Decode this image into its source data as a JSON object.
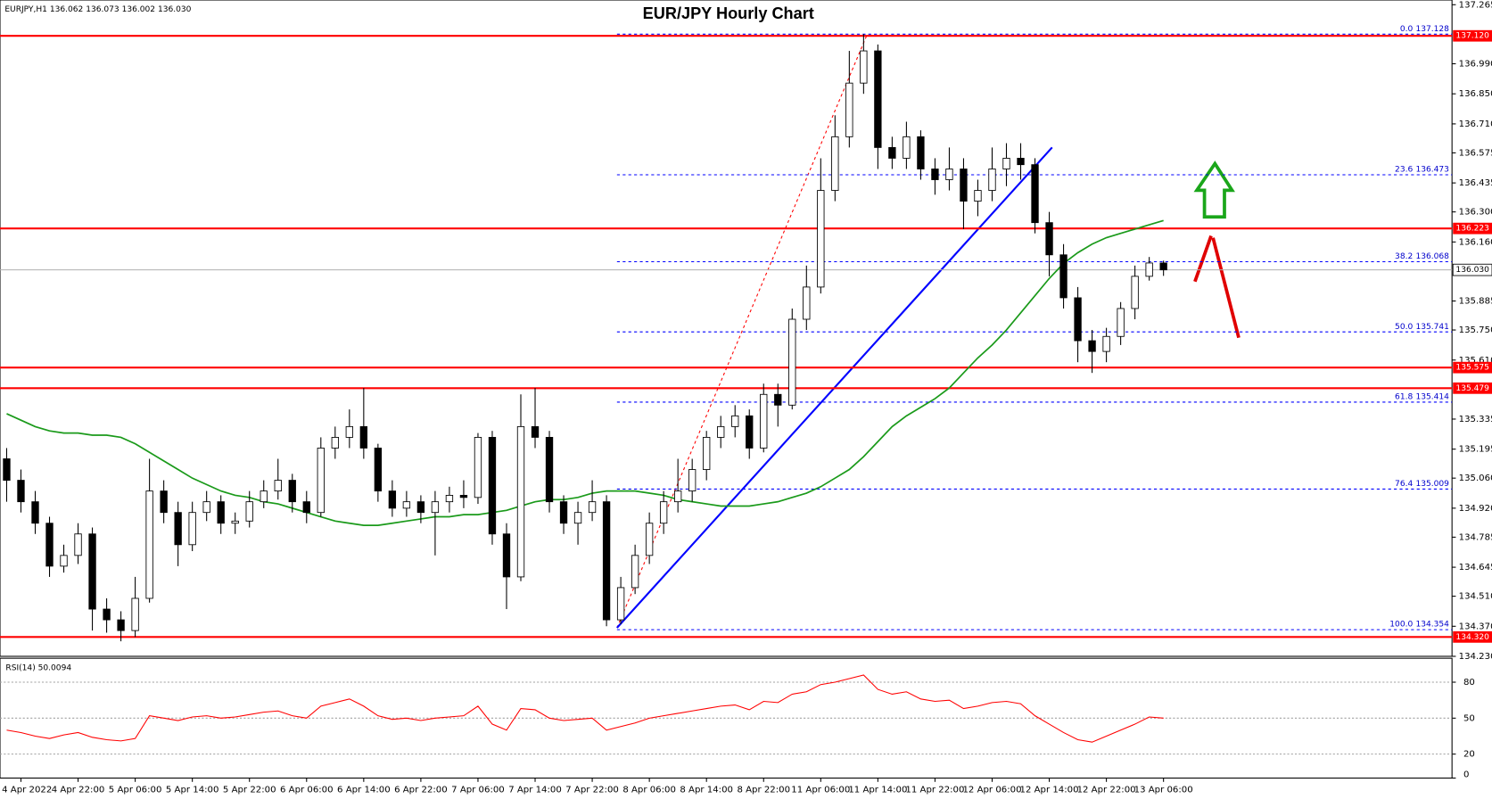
{
  "chart_data": [
    {
      "type": "candlestick",
      "title": "EUR/JPY Hourly Chart",
      "header": "EURJPY,H1  136.062 136.073 136.002 136.030",
      "categories": [
        null,
        "4 Apr 2022",
        null,
        null,
        null,
        "4 Apr 22:00",
        null,
        null,
        null,
        "5 Apr 06:00",
        null,
        null,
        null,
        "5 Apr 14:00",
        null,
        null,
        null,
        "5 Apr 22:00",
        null,
        null,
        null,
        "6 Apr 06:00",
        null,
        null,
        null,
        "6 Apr 14:00",
        null,
        null,
        null,
        "6 Apr 22:00",
        null,
        null,
        null,
        "7 Apr 06:00",
        null,
        null,
        null,
        "7 Apr 14:00",
        null,
        null,
        null,
        "7 Apr 22:00",
        null,
        null,
        null,
        "8 Apr 06:00",
        null,
        null,
        null,
        "8 Apr 14:00",
        null,
        null,
        null,
        "8 Apr 22:00",
        null,
        null,
        null,
        "11 Apr 06:00",
        null,
        null,
        null,
        "11 Apr 14:00",
        null,
        null,
        null,
        "11 Apr 22:00",
        null,
        null,
        null,
        "12 Apr 06:00",
        null,
        null,
        null,
        "12 Apr 14:00",
        null,
        null,
        null,
        "12 Apr 22:00",
        null,
        null,
        null,
        "13 Apr 06:00"
      ],
      "open": [
        135.15,
        135.05,
        134.95,
        134.85,
        134.65,
        134.7,
        134.8,
        134.45,
        134.4,
        134.35,
        134.5,
        135.0,
        134.9,
        134.75,
        134.9,
        134.95,
        134.85,
        134.86,
        134.95,
        135.0,
        135.05,
        134.95,
        134.9,
        135.2,
        135.25,
        135.3,
        135.2,
        135.0,
        134.92,
        134.95,
        134.9,
        134.95,
        134.98,
        134.97,
        135.25,
        134.8,
        134.6,
        135.3,
        135.25,
        134.95,
        134.85,
        134.9,
        134.95,
        134.4,
        134.55,
        134.7,
        134.85,
        134.95,
        135.0,
        135.1,
        135.25,
        135.3,
        135.35,
        135.2,
        135.45,
        135.4,
        135.8,
        135.95,
        136.4,
        136.65,
        136.9,
        137.05,
        136.6,
        136.55,
        136.65,
        136.5,
        136.45,
        136.5,
        136.35,
        136.4,
        136.5,
        136.55,
        136.52,
        136.25,
        136.1,
        135.9,
        135.7,
        135.65,
        135.72,
        135.85,
        136.0,
        136.062
      ],
      "high": [
        135.2,
        135.1,
        135.0,
        134.88,
        134.75,
        134.85,
        134.83,
        134.5,
        134.44,
        134.6,
        135.15,
        135.05,
        134.95,
        134.95,
        135.0,
        134.98,
        134.9,
        135.0,
        135.05,
        135.15,
        135.08,
        135.0,
        135.25,
        135.3,
        135.38,
        135.48,
        135.22,
        135.05,
        135.0,
        134.98,
        135.0,
        135.02,
        135.05,
        135.27,
        135.28,
        134.85,
        135.45,
        135.48,
        135.28,
        134.98,
        134.95,
        135.05,
        134.98,
        134.6,
        134.75,
        134.9,
        135.0,
        135.15,
        135.15,
        135.28,
        135.35,
        135.4,
        135.38,
        135.5,
        135.5,
        135.85,
        136.05,
        136.55,
        136.75,
        137.05,
        137.128,
        137.08,
        136.65,
        136.72,
        136.68,
        136.55,
        136.6,
        136.55,
        136.45,
        136.6,
        136.62,
        136.62,
        136.55,
        136.3,
        136.15,
        135.95,
        135.75,
        135.76,
        135.88,
        136.05,
        136.09,
        136.073
      ],
      "low": [
        134.95,
        134.9,
        134.8,
        134.6,
        134.62,
        134.66,
        134.35,
        134.34,
        134.3,
        134.32,
        134.48,
        134.85,
        134.65,
        134.72,
        134.86,
        134.8,
        134.8,
        134.83,
        134.92,
        134.96,
        134.9,
        134.85,
        134.88,
        135.15,
        135.2,
        135.15,
        134.95,
        134.88,
        134.88,
        134.85,
        134.7,
        134.9,
        134.92,
        134.94,
        134.75,
        134.45,
        134.58,
        135.2,
        134.9,
        134.8,
        134.75,
        134.86,
        134.37,
        134.38,
        134.52,
        134.66,
        134.8,
        134.9,
        134.95,
        135.05,
        135.2,
        135.25,
        135.15,
        135.18,
        135.3,
        135.38,
        135.75,
        135.92,
        136.35,
        136.6,
        136.85,
        136.5,
        136.5,
        136.5,
        136.45,
        136.38,
        136.4,
        136.22,
        136.28,
        136.35,
        136.42,
        136.45,
        136.2,
        136.0,
        135.85,
        135.6,
        135.55,
        135.6,
        135.68,
        135.8,
        135.98,
        136.002
      ],
      "close": [
        135.05,
        134.95,
        134.85,
        134.65,
        134.7,
        134.8,
        134.45,
        134.4,
        134.35,
        134.5,
        135.0,
        134.9,
        134.75,
        134.9,
        134.95,
        134.85,
        134.86,
        134.95,
        135.0,
        135.05,
        134.95,
        134.9,
        135.2,
        135.25,
        135.3,
        135.2,
        135.0,
        134.92,
        134.95,
        134.9,
        134.95,
        134.98,
        134.97,
        135.25,
        134.8,
        134.6,
        135.3,
        135.25,
        134.95,
        134.85,
        134.9,
        134.95,
        134.4,
        134.55,
        134.7,
        134.85,
        134.95,
        135.0,
        135.1,
        135.25,
        135.3,
        135.35,
        135.2,
        135.45,
        135.4,
        135.8,
        135.95,
        136.4,
        136.65,
        136.9,
        137.05,
        136.6,
        136.55,
        136.65,
        136.5,
        136.45,
        136.5,
        136.35,
        136.4,
        136.5,
        136.55,
        136.52,
        136.25,
        136.1,
        135.9,
        135.7,
        135.65,
        135.72,
        135.85,
        136.0,
        136.062,
        136.03
      ],
      "moving_average": {
        "color": "#1a9a1a",
        "values": [
          135.36,
          135.33,
          135.3,
          135.28,
          135.27,
          135.27,
          135.26,
          135.26,
          135.25,
          135.22,
          135.18,
          135.14,
          135.1,
          135.06,
          135.03,
          135.0,
          134.98,
          134.97,
          134.95,
          134.94,
          134.92,
          134.9,
          134.88,
          134.86,
          134.85,
          134.84,
          134.84,
          134.85,
          134.86,
          134.87,
          134.88,
          134.88,
          134.89,
          134.89,
          134.9,
          134.91,
          134.93,
          134.95,
          134.96,
          134.96,
          134.97,
          134.99,
          135.0,
          135.0,
          135.0,
          134.99,
          134.98,
          134.96,
          134.95,
          134.94,
          134.93,
          134.93,
          134.93,
          134.94,
          134.95,
          134.97,
          134.99,
          135.02,
          135.06,
          135.1,
          135.16,
          135.23,
          135.3,
          135.35,
          135.39,
          135.43,
          135.48,
          135.55,
          135.62,
          135.68,
          135.75,
          135.83,
          135.91,
          135.99,
          136.06,
          136.11,
          136.15,
          136.18,
          136.2,
          136.22,
          136.24,
          136.26
        ]
      },
      "ylim": [
        134.23,
        137.287
      ],
      "yticks": [
        137.265,
        {
          "value": 136.99,
          "label": "136.990"
        },
        {
          "value": 136.85,
          "label": "136.850"
        },
        {
          "value": 136.71,
          "label": "136.710"
        },
        136.575,
        136.435,
        {
          "value": 136.3,
          "label": "136.300"
        },
        {
          "value": 136.16,
          "label": "136.160"
        },
        135.885,
        {
          "value": 135.75,
          "label": "135.750"
        },
        {
          "value": 135.61,
          "label": "135.610"
        },
        135.335,
        135.195,
        {
          "value": 135.06,
          "label": "135.060"
        },
        {
          "value": 134.92,
          "label": "134.920"
        },
        134.785,
        134.645,
        {
          "value": 134.51,
          "label": "134.510"
        },
        {
          "value": 134.37,
          "label": "134.370"
        },
        {
          "value": 134.23,
          "label": "134.230"
        }
      ],
      "levels": [
        {
          "value": 137.12,
          "label": "137.120"
        },
        {
          "value": 136.223,
          "label": "136.223"
        },
        {
          "value": 135.575,
          "label": "135.575"
        },
        {
          "value": 135.479,
          "label": "135.479"
        },
        {
          "value": 134.32,
          "label": "134.320"
        }
      ],
      "level_color": "#ff0000",
      "current_price": {
        "value": 136.03,
        "label": "136.030"
      },
      "fibonacci": [
        {
          "ratio": "0.0",
          "price": 137.128
        },
        {
          "ratio": "23.6",
          "price": 136.473
        },
        {
          "ratio": "38.2",
          "price": 136.068
        },
        {
          "ratio": "50.0",
          "price": 135.741
        },
        {
          "ratio": "61.8",
          "price": 135.414
        },
        {
          "ratio": "76.4",
          "price": 135.009
        },
        {
          "ratio": "100.0",
          "price": 134.354
        }
      ],
      "fib_color": "#0000ff"
    },
    {
      "type": "line",
      "title": "RSI(14) 50.0094",
      "color": "#ff0000",
      "values": [
        40,
        38,
        35,
        33,
        36,
        38,
        34,
        32,
        31,
        33,
        52,
        50,
        48,
        51,
        52,
        50,
        51,
        53,
        55,
        56,
        52,
        50,
        60,
        63,
        66,
        60,
        52,
        49,
        50,
        48,
        50,
        51,
        52,
        60,
        45,
        40,
        58,
        57,
        50,
        48,
        49,
        50,
        40,
        43,
        46,
        50,
        52,
        54,
        56,
        58,
        60,
        61,
        57,
        64,
        63,
        70,
        72,
        78,
        80,
        83,
        86,
        74,
        70,
        72,
        66,
        64,
        65,
        58,
        60,
        63,
        64,
        62,
        52,
        45,
        38,
        32,
        30,
        35,
        40,
        45,
        51,
        50
      ],
      "ylim": [
        0,
        100
      ],
      "yticks": [
        0,
        20,
        50,
        80
      ]
    }
  ]
}
